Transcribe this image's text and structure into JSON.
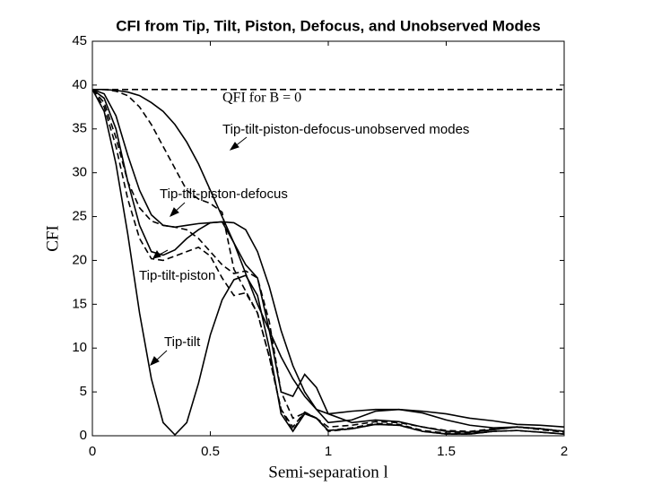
{
  "chart_data": {
    "type": "line",
    "title": "CFI from Tip, Tilt, Piston, Defocus, and Unobserved Modes",
    "x_label": "Semi-separation l",
    "y_label": "CFI",
    "xlim": [
      0,
      2
    ],
    "ylim": [
      0,
      45
    ],
    "xticks": [
      0,
      0.5,
      1,
      1.5,
      2
    ],
    "yticks": [
      0,
      5,
      10,
      15,
      20,
      25,
      30,
      35,
      40,
      45
    ],
    "x": [
      0,
      0.05,
      0.1,
      0.15,
      0.2,
      0.25,
      0.3,
      0.35,
      0.4,
      0.45,
      0.5,
      0.55,
      0.6,
      0.65,
      0.7,
      0.75,
      0.8,
      0.85,
      0.9,
      0.95,
      1,
      1.1,
      1.2,
      1.3,
      1.4,
      1.5,
      1.6,
      1.7,
      1.8,
      1.9,
      2
    ],
    "annotations": [
      "QFI for B = 0",
      "Tip-tilt-piston-defocus-unobserved modes",
      "Tip-tilt-piston-defocus",
      "Tip-tilt-piston",
      "Tip-tilt"
    ],
    "series": [
      {
        "color": "#000000",
        "dashed": true,
        "values": [
          39.5,
          39.5,
          39.5,
          39.5,
          39.5,
          39.5,
          39.5,
          39.5,
          39.5,
          39.5,
          39.5,
          39.5,
          39.5,
          39.5,
          39.5,
          39.5,
          39.5,
          39.5,
          39.5,
          39.5,
          39.5,
          39.5,
          39.5,
          39.5,
          39.5,
          39.5,
          39.5,
          39.5,
          39.5,
          39.5,
          39.5
        ]
      },
      {
        "color": "#000000",
        "dashed": false,
        "values": [
          39.5,
          39.5,
          39.4,
          39.2,
          38.8,
          38,
          37,
          35.5,
          33.5,
          31,
          28,
          25,
          22,
          18.5,
          15,
          12,
          9,
          6.5,
          4.5,
          3,
          2.5,
          2.8,
          3,
          3,
          2.8,
          2.5,
          2,
          1.7,
          1.3,
          1.2,
          1
        ]
      },
      {
        "color": "#000000",
        "dashed": true,
        "values": [
          39.5,
          39.5,
          39.3,
          38.8,
          37.5,
          35.5,
          33,
          30.5,
          28,
          27,
          26.5,
          25.5,
          19,
          16.5,
          14,
          9,
          3,
          0.6,
          2.7,
          2,
          0.6,
          0.9,
          1.4,
          1.3,
          0.6,
          0.3,
          0.3,
          0.7,
          1,
          0.7,
          0.4
        ]
      },
      {
        "color": "#000000",
        "dashed": false,
        "values": [
          39.5,
          39,
          36.5,
          32,
          28,
          25.2,
          24,
          23.8,
          24,
          24.2,
          24.3,
          24.4,
          24.3,
          23.5,
          21,
          17,
          12,
          8,
          5,
          3,
          1.5,
          1.8,
          2.8,
          3,
          2.6,
          1.8,
          1.2,
          0.9,
          1,
          0.8,
          0.5
        ]
      },
      {
        "color": "#000000",
        "dashed": true,
        "values": [
          39.5,
          38,
          34,
          29,
          26,
          24.5,
          24,
          23.8,
          23.5,
          22.5,
          21,
          19.5,
          18.5,
          18.8,
          18,
          13,
          5,
          2,
          2.6,
          2,
          1,
          1.2,
          1.6,
          1.5,
          1,
          0.6,
          0.5,
          0.8,
          1,
          0.8,
          0.5
        ]
      },
      {
        "color": "#000000",
        "dashed": false,
        "values": [
          39.5,
          38.5,
          35,
          29,
          24,
          21,
          20.6,
          21.2,
          22.5,
          23.5,
          24.3,
          24.4,
          22,
          19.5,
          18,
          12,
          5,
          4.5,
          7,
          5.5,
          2.5,
          1.5,
          1.8,
          1.6,
          1,
          0.5,
          0.4,
          0.7,
          1,
          0.8,
          0.5
        ]
      },
      {
        "color": "#000000",
        "dashed": true,
        "values": [
          39.5,
          37.5,
          33,
          27,
          22.5,
          20.2,
          20,
          20.5,
          21,
          21.5,
          20.5,
          18,
          16,
          16.3,
          14,
          9,
          3,
          1,
          2.7,
          2,
          0.5,
          0.8,
          1.3,
          1.2,
          0.5,
          0.2,
          0.2,
          0.5,
          0.6,
          0.4,
          0.2
        ]
      },
      {
        "color": "#000000",
        "dashed": false,
        "values": [
          39.5,
          37,
          31,
          23,
          14,
          6.5,
          1.5,
          0.1,
          1.5,
          6,
          11.5,
          15.5,
          17.8,
          18.3,
          16,
          10,
          2.5,
          0.5,
          2.5,
          2,
          0.6,
          0.8,
          1.3,
          1.2,
          0.5,
          0.2,
          0.2,
          0.5,
          0.6,
          0.4,
          0.2
        ]
      }
    ]
  }
}
